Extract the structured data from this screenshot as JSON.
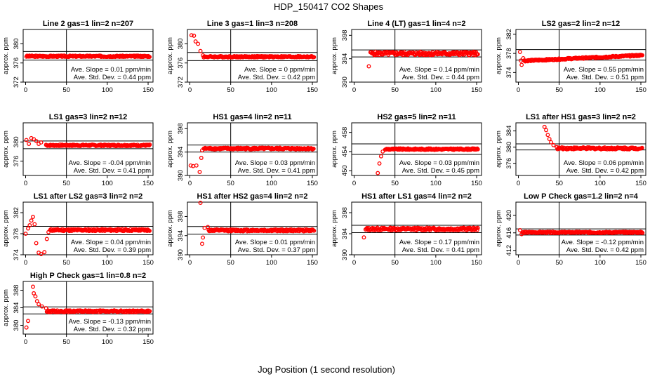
{
  "figure": {
    "title": "HDP_150417  CO2 Shapes",
    "xlabel": "Jog Position (1 second resolution)"
  },
  "chart_data": [
    {
      "type": "scatter",
      "title": "Line 2 gas=1 lin=2 n=207",
      "ylabel": "approx. ppm",
      "xlim": [
        -3,
        156
      ],
      "ylim": [
        372,
        383
      ],
      "xticks": [
        0,
        50,
        100,
        150
      ],
      "yticks": [
        372,
        376,
        380
      ],
      "vline": 50,
      "hlines": [
        378.4,
        376.6
      ],
      "level": 377.4,
      "noise": 0.15,
      "anchors": [],
      "xstart": 1,
      "slope_label": "Ave. Slope =  0.01  ppm/min",
      "sd_label": "Ave. Std. Dev. =  0.44  ppm"
    },
    {
      "type": "scatter",
      "title": "Line 3 gas=1 lin=3 n=208",
      "ylabel": "approx. ppm",
      "xlim": [
        -3,
        156
      ],
      "ylim": [
        372,
        383
      ],
      "xticks": [
        0,
        50,
        100,
        150
      ],
      "yticks": [
        372,
        376,
        380
      ],
      "vline": 50,
      "hlines": [
        378.2,
        376.5
      ],
      "level": 377.3,
      "noise": 0.15,
      "anchors": [
        [
          2,
          381.8
        ],
        [
          5,
          381.7
        ],
        [
          7,
          380.5
        ],
        [
          10,
          380.0
        ],
        [
          13,
          378.5
        ],
        [
          16,
          377.6
        ]
      ],
      "xstart": 1,
      "slope_label": "Ave. Slope =  0  ppm/min",
      "sd_label": "Ave. Std. Dev. =  0.42  ppm"
    },
    {
      "type": "scatter",
      "title": "Line 4 (LT) gas=1 lin=4 n=2",
      "ylabel": "approx. ppm",
      "xlim": [
        -3,
        156
      ],
      "ylim": [
        390,
        399
      ],
      "xticks": [
        0,
        50,
        100,
        150
      ],
      "yticks": [
        390,
        394,
        398
      ],
      "vline": 50,
      "hlines": [
        395.5,
        394.3
      ],
      "level": 394.9,
      "noise": 0.3,
      "anchors": [
        [
          18,
          392.7
        ],
        [
          20,
          395.1
        ]
      ],
      "xstart": 18,
      "slope_label": "Ave. Slope =  0.14  ppm/min",
      "sd_label": "Ave. Std. Dev. =  0.44  ppm"
    },
    {
      "type": "scatter",
      "title": "LS2 gas=2 lin=2 n=12",
      "ylabel": "approx. ppm",
      "xlim": [
        -3,
        156
      ],
      "ylim": [
        372,
        383
      ],
      "xticks": [
        0,
        50,
        100,
        150
      ],
      "yticks": [
        374,
        378,
        382
      ],
      "vline": 50,
      "hlines": [
        378.8,
        376.6
      ],
      "level": 377.0,
      "slope": 0.008,
      "noise": 0.15,
      "anchors": [
        [
          2,
          378.3
        ],
        [
          3,
          376.5
        ],
        [
          4,
          375.6
        ],
        [
          6,
          377.0
        ]
      ],
      "xstart": 1,
      "slope_label": "Ave. Slope =  0.55  ppm/min",
      "sd_label": "Ave. Std. Dev. =  0.51  ppm"
    },
    {
      "type": "scatter",
      "title": "LS1 gas=3 lin=2 n=12",
      "ylabel": "approx. ppm",
      "xlim": [
        -3,
        156
      ],
      "ylim": [
        373,
        384
      ],
      "xticks": [
        0,
        50,
        100,
        150
      ],
      "yticks": [
        376,
        380
      ],
      "vline": 50,
      "hlines": [
        380.2,
        378.6
      ],
      "level": 379.3,
      "noise": 0.15,
      "anchors": [
        [
          1,
          380.4
        ],
        [
          4,
          379.6
        ],
        [
          7,
          380.8
        ],
        [
          10,
          380.6
        ],
        [
          13,
          380.2
        ],
        [
          16,
          379.6
        ],
        [
          19,
          379.9
        ],
        [
          25,
          379.4
        ]
      ],
      "xstart": 1,
      "slope_label": "Ave. Slope =  -0.04  ppm/min",
      "sd_label": "Ave. Std. Dev. =  0.41  ppm"
    },
    {
      "type": "scatter",
      "title": "HS1 gas=4 lin=2 n=11",
      "ylabel": "approx. ppm",
      "xlim": [
        -3,
        156
      ],
      "ylim": [
        390,
        399
      ],
      "xticks": [
        0,
        50,
        100,
        150
      ],
      "yticks": [
        390,
        394,
        398
      ],
      "vline": 50,
      "hlines": [
        395.2,
        394.0
      ],
      "level": 394.6,
      "noise": 0.15,
      "anchors": [
        [
          1,
          391.7
        ],
        [
          4,
          391.6
        ],
        [
          8,
          391.7
        ],
        [
          12,
          390.6
        ],
        [
          14,
          393.0
        ],
        [
          15,
          394.3
        ],
        [
          17,
          394.6
        ]
      ],
      "xstart": 1,
      "slope_label": "Ave. Slope =  0.03  ppm/min",
      "sd_label": "Ave. Std. Dev. =  0.41  ppm"
    },
    {
      "type": "scatter",
      "title": "HS2 gas=5 lin=2 n=11",
      "ylabel": "approx. ppm",
      "xlim": [
        -3,
        156
      ],
      "ylim": [
        449,
        460
      ],
      "xticks": [
        0,
        50,
        100,
        150
      ],
      "yticks": [
        450,
        454,
        458
      ],
      "vline": 50,
      "hlines": [
        455.6,
        453.4
      ],
      "level": 454.5,
      "noise": 0.15,
      "anchors": [
        [
          29,
          449.5
        ],
        [
          31,
          451.5
        ],
        [
          33,
          453.0
        ],
        [
          35,
          454.0
        ],
        [
          38,
          454.4
        ]
      ],
      "xstart": 29,
      "slope_label": "Ave. Slope =  0.03  ppm/min",
      "sd_label": "Ave. Std. Dev. =  0.45  ppm"
    },
    {
      "type": "scatter",
      "title": "LS1 after HS1 gas=3 lin=2 n=2",
      "ylabel": "approx. ppm",
      "xlim": [
        -3,
        156
      ],
      "ylim": [
        373,
        386
      ],
      "xticks": [
        0,
        50,
        100,
        150
      ],
      "yticks": [
        376,
        380,
        384
      ],
      "vline": 50,
      "hlines": [
        380.8,
        379.3
      ],
      "level": 379.7,
      "noise": 0.25,
      "anchors": [
        [
          32,
          385.0
        ],
        [
          34,
          384.2
        ],
        [
          36,
          383.0
        ],
        [
          38,
          382.0
        ],
        [
          40,
          381.2
        ],
        [
          43,
          380.5
        ],
        [
          47,
          380.0
        ]
      ],
      "xstart": 32,
      "slope_label": "Ave. Slope =  0.06  ppm/min",
      "sd_label": "Ave. Std. Dev. =  0.42  ppm"
    },
    {
      "type": "scatter",
      "title": "LS1 after LS2 gas=3 lin=2 n=2",
      "ylabel": "approx. ppm",
      "xlim": [
        -3,
        156
      ],
      "ylim": [
        374,
        384
      ],
      "xticks": [
        0,
        50,
        100,
        150
      ],
      "yticks": [
        374,
        378,
        382
      ],
      "vline": 50,
      "hlines": [
        379.4,
        377.8
      ],
      "level": 378.7,
      "noise": 0.2,
      "anchors": [
        [
          0,
          378.0
        ],
        [
          3,
          379.0
        ],
        [
          5,
          379.6
        ],
        [
          7,
          380.5
        ],
        [
          9,
          381.2
        ],
        [
          11,
          379.8
        ],
        [
          13,
          376.2
        ],
        [
          16,
          374.4
        ],
        [
          19,
          374.0
        ],
        [
          23,
          374.5
        ],
        [
          26,
          377.0
        ],
        [
          28,
          378.3
        ],
        [
          30,
          378.7
        ]
      ],
      "xstart": 0,
      "slope_label": "Ave. Slope =  0.04  ppm/min",
      "sd_label": "Ave. Std. Dev. =  0.39  ppm"
    },
    {
      "type": "scatter",
      "title": "HS1 after HS2 gas=4 lin=2 n=2",
      "ylabel": "approx. ppm",
      "xlim": [
        -3,
        156
      ],
      "ylim": [
        390,
        401
      ],
      "xticks": [
        0,
        50,
        100,
        150
      ],
      "yticks": [
        390,
        394,
        398
      ],
      "vline": 50,
      "hlines": [
        395.9,
        394.3
      ],
      "level": 395.1,
      "noise": 0.2,
      "anchors": [
        [
          13,
          401.0
        ],
        [
          15,
          392.3
        ],
        [
          16,
          393.6
        ],
        [
          18,
          395.6
        ],
        [
          22,
          395.8
        ]
      ],
      "xstart": 13,
      "slope_label": "Ave. Slope =  0.01  ppm/min",
      "sd_label": "Ave. Std. Dev. =  0.37  ppm"
    },
    {
      "type": "scatter",
      "title": "HS1 after LS1 gas=4 lin=2 n=2",
      "ylabel": "approx. ppm",
      "xlim": [
        -3,
        156
      ],
      "ylim": [
        390,
        400
      ],
      "xticks": [
        0,
        50,
        100,
        150
      ],
      "yticks": [
        390,
        394,
        398
      ],
      "vline": 50,
      "hlines": [
        395.6,
        394.2
      ],
      "level": 394.9,
      "noise": 0.25,
      "anchors": [
        [
          12,
          393.3
        ],
        [
          14,
          394.8
        ]
      ],
      "xstart": 12,
      "slope_label": "Ave. Slope =  0.17  ppm/min",
      "sd_label": "Ave. Std. Dev. =  0.41  ppm"
    },
    {
      "type": "scatter",
      "title": "Low P Check gas=1.2 lin=2 n=4",
      "ylabel": "approx. ppm",
      "xlim": [
        -3,
        156
      ],
      "ylim": [
        411,
        423
      ],
      "xticks": [
        0,
        50,
        100,
        150
      ],
      "yticks": [
        412,
        416,
        420
      ],
      "vline": 50,
      "hlines": [
        416.9,
        415.5
      ],
      "level": 416.1,
      "noise": 0.15,
      "anchors": [
        [
          2,
          416.6
        ],
        [
          4,
          415.7
        ]
      ],
      "xstart": 1,
      "slope_label": "Ave. Slope =  -0.12  ppm/min",
      "sd_label": "Ave. Std. Dev. =  0.42  ppm"
    },
    {
      "type": "scatter",
      "title": "High P Check gas=1 lin=0.8 n=2",
      "ylabel": "approx. ppm",
      "xlim": [
        -3,
        156
      ],
      "ylim": [
        378,
        390
      ],
      "xticks": [
        0,
        50,
        100,
        150
      ],
      "yticks": [
        380,
        384,
        388
      ],
      "vline": 50,
      "hlines": [
        384.2,
        382.6
      ],
      "level": 383.2,
      "noise": 0.2,
      "anchors": [
        [
          1,
          379.5
        ],
        [
          3,
          381.0
        ],
        [
          9,
          388.8
        ],
        [
          10,
          387.3
        ],
        [
          12,
          386.6
        ],
        [
          14,
          385.5
        ],
        [
          16,
          384.8
        ],
        [
          20,
          384.3
        ],
        [
          25,
          383.9
        ]
      ],
      "xstart": 1,
      "slope_label": "Ave. Slope =  -0.13  ppm/min",
      "sd_label": "Ave. Std. Dev. =  0.32  ppm"
    }
  ]
}
